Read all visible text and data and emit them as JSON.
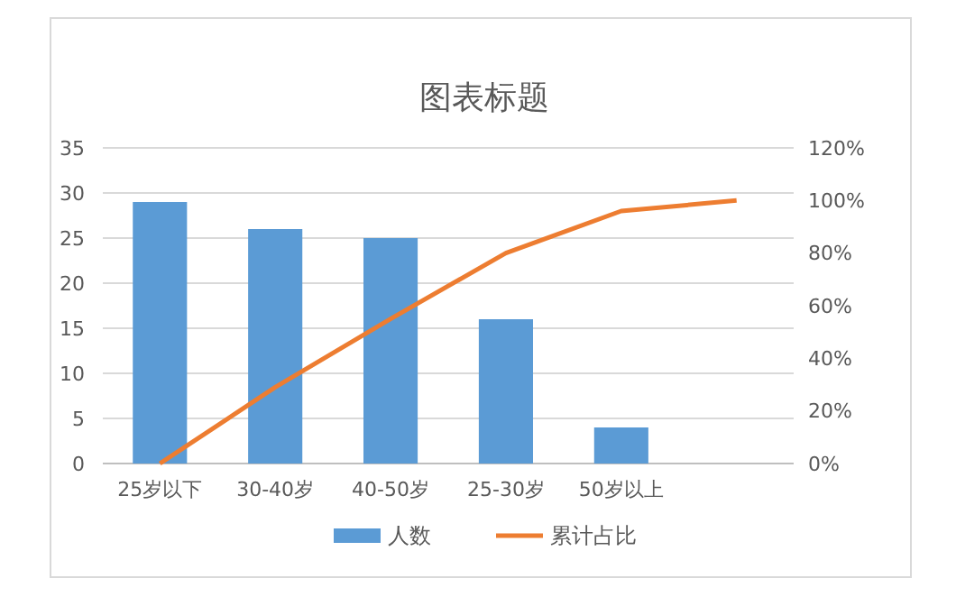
{
  "chart_data": {
    "type": "bar",
    "title": "图表标题",
    "categories": [
      "25岁以下",
      "30-40岁",
      "40-50岁",
      "25-30岁",
      "50岁以上",
      null
    ],
    "series": [
      {
        "name": "人数",
        "color": "#5b9bd5",
        "values": [
          29,
          26,
          25,
          16,
          4,
          null
        ]
      },
      {
        "name": "累计占比",
        "type": "line",
        "axis": "y2",
        "color": "#ed7d31",
        "values": [
          0,
          29,
          55,
          80,
          96,
          100
        ]
      }
    ],
    "ylim": [
      0,
      35
    ],
    "yticks": [
      0,
      5,
      10,
      15,
      20,
      25,
      30,
      35
    ],
    "y2lim": [
      0,
      120
    ],
    "y2ticks": [
      {
        "value": 0,
        "label": "0%"
      },
      {
        "value": 20,
        "label": "20%"
      },
      {
        "value": 40,
        "label": "40%"
      },
      {
        "value": 60,
        "label": "60%"
      },
      {
        "value": 80,
        "label": "80%"
      },
      {
        "value": 100,
        "label": "100%"
      },
      {
        "value": 120,
        "label": "120%"
      }
    ],
    "grid": "y",
    "legend": "bottom",
    "marker": "none",
    "line_style": "solid"
  }
}
